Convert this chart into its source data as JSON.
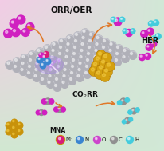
{
  "bg_tl": [
    0.82,
    0.91,
    0.82
  ],
  "bg_tr": [
    0.82,
    0.91,
    0.84
  ],
  "bg_bl": [
    0.95,
    0.8,
    0.9
  ],
  "bg_br": [
    0.82,
    0.91,
    0.84
  ],
  "label_ORR_OER": "ORR/OER",
  "label_HER": "HER",
  "label_CO2RR": "CO$_2$RR",
  "label_MNA": "MNA",
  "legend_labels": [
    "M$_1$",
    "N",
    "O",
    "C",
    "H"
  ],
  "legend_colors": [
    "#d81b7a",
    "#3a85d0",
    "#cc44cc",
    "#909090",
    "#44ccdd"
  ],
  "arrow_color": "#e07828",
  "col_magenta": "#d020c0",
  "col_blue": "#3a85d0",
  "col_cyan": "#44ccdd",
  "col_gray": "#909090",
  "col_gold": "#c8920a",
  "col_gold_light": "#e8c060",
  "col_crimson": "#d81b7a",
  "col_slab": "#a8a8b0",
  "col_slab_atom": "#b8b8c0",
  "col_lightning": "#cc88ff",
  "col_lightning2": "#ddaaff"
}
